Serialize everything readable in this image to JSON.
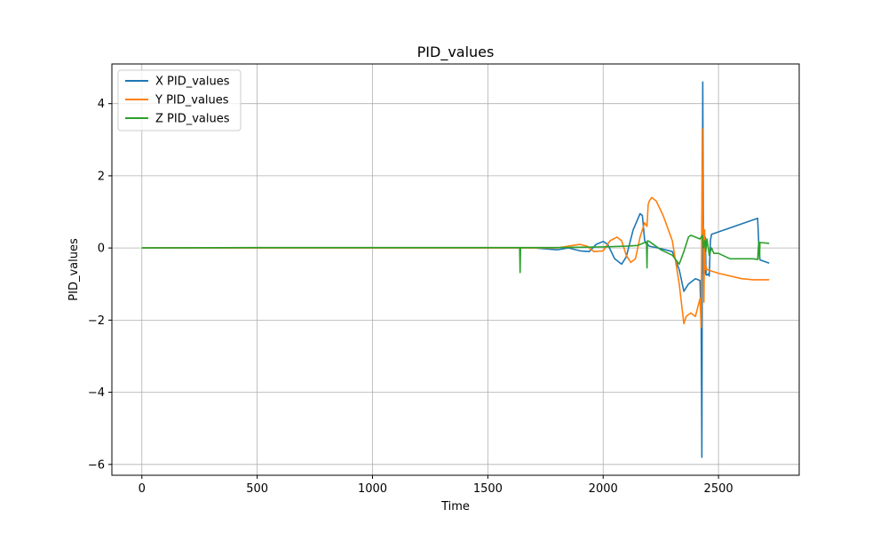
{
  "chart_data": {
    "type": "line",
    "title": "PID_values",
    "xlabel": "Time",
    "ylabel": "PID_values",
    "xlim": [
      -130,
      2850
    ],
    "ylim": [
      -6.3,
      5.1
    ],
    "xticks": [
      0,
      500,
      1000,
      1500,
      2000,
      2500
    ],
    "xtick_labels": [
      "0",
      "500",
      "1000",
      "1500",
      "2000",
      "2500"
    ],
    "yticks": [
      -6,
      -4,
      -2,
      0,
      2,
      4
    ],
    "ytick_labels": [
      "−6",
      "−4",
      "−2",
      "0",
      "2",
      "4"
    ],
    "grid": true,
    "legend_position": "top-left",
    "series": [
      {
        "name": "X PID_values",
        "color": "#1f77b4",
        "x": [
          0,
          500,
          1000,
          1500,
          1700,
          1760,
          1800,
          1850,
          1900,
          1940,
          1970,
          2000,
          2020,
          2050,
          2080,
          2100,
          2130,
          2160,
          2170,
          2180,
          2190,
          2200,
          2250,
          2300,
          2330,
          2350,
          2370,
          2400,
          2420,
          2425,
          2428,
          2430,
          2432,
          2435,
          2437,
          2440,
          2443,
          2446,
          2450,
          2455,
          2460,
          2465,
          2470,
          2670,
          2675,
          2680,
          2720
        ],
        "y": [
          0,
          0,
          0,
          0,
          0,
          -0.03,
          -0.05,
          0,
          -0.08,
          -0.1,
          0.1,
          0.18,
          0.1,
          -0.3,
          -0.45,
          -0.25,
          0.5,
          0.95,
          0.9,
          0.2,
          0.12,
          0.05,
          -0.02,
          -0.1,
          -0.6,
          -1.2,
          -1.0,
          -0.85,
          -0.9,
          -2.0,
          -5.8,
          0.5,
          4.6,
          -0.7,
          0.4,
          -0.7,
          0.3,
          -0.75,
          -0.75,
          -0.72,
          -0.78,
          0.2,
          0.38,
          0.82,
          0.1,
          -0.33,
          -0.42
        ]
      },
      {
        "name": "Y PID_values",
        "color": "#ff7f0e",
        "x": [
          0,
          500,
          1000,
          1500,
          1800,
          1850,
          1900,
          1930,
          1960,
          2000,
          2030,
          2060,
          2080,
          2100,
          2120,
          2140,
          2160,
          2180,
          2190,
          2195,
          2200,
          2210,
          2230,
          2260,
          2300,
          2330,
          2350,
          2360,
          2380,
          2400,
          2420,
          2425,
          2428,
          2430,
          2432,
          2435,
          2437,
          2440,
          2443,
          2446,
          2450,
          2500,
          2600,
          2650,
          2700,
          2720
        ],
        "y": [
          0,
          0,
          0,
          0,
          0,
          0.05,
          0.1,
          0.05,
          -0.1,
          -0.08,
          0.2,
          0.3,
          0.2,
          -0.2,
          -0.4,
          -0.3,
          0.3,
          0.7,
          0.6,
          1.2,
          1.3,
          1.4,
          1.3,
          0.9,
          0.2,
          -1.0,
          -2.1,
          -1.9,
          -1.8,
          -1.9,
          -1.4,
          -2.2,
          1.2,
          3.3,
          0.2,
          0.6,
          -1.5,
          0.5,
          -0.6,
          -0.5,
          -0.6,
          -0.7,
          -0.85,
          -0.88,
          -0.88,
          -0.88
        ]
      },
      {
        "name": "Z PID_values",
        "color": "#2ca02c",
        "x": [
          0,
          500,
          1000,
          1500,
          1638,
          1640,
          1642,
          1700,
          1800,
          1900,
          2000,
          2100,
          2150,
          2180,
          2188,
          2190,
          2192,
          2200,
          2250,
          2300,
          2330,
          2350,
          2370,
          2380,
          2400,
          2420,
          2430,
          2435,
          2440,
          2445,
          2450,
          2460,
          2470,
          2480,
          2500,
          2550,
          2600,
          2650,
          2670,
          2675,
          2678,
          2680,
          2720
        ],
        "y": [
          0,
          0.01,
          0.01,
          0.01,
          0.01,
          -0.68,
          0.01,
          0.01,
          0.01,
          0.02,
          0.03,
          0.05,
          0.07,
          0.15,
          0.12,
          -0.55,
          0.2,
          0.18,
          -0.05,
          -0.2,
          -0.45,
          -0.1,
          0.3,
          0.35,
          0.3,
          0.25,
          0.35,
          0.0,
          0.2,
          -0.1,
          0.25,
          -0.2,
          0.0,
          -0.15,
          -0.15,
          -0.3,
          -0.3,
          -0.3,
          -0.32,
          0.18,
          -0.3,
          0.15,
          0.13
        ]
      }
    ]
  }
}
